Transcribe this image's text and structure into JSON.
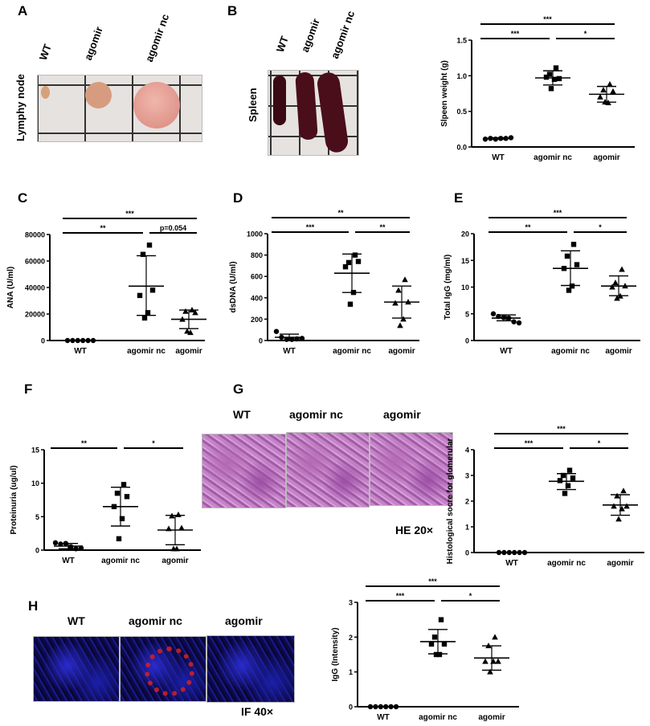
{
  "panels": {
    "A": {
      "letter": "A",
      "row_label": "Lymphy node",
      "col_labels": [
        "WT",
        "agomir",
        "agomir nc"
      ]
    },
    "B": {
      "letter": "B",
      "row_label": "Spleen",
      "col_labels": [
        "WT",
        "agomir",
        "agomir nc"
      ]
    },
    "C": {
      "letter": "C"
    },
    "D": {
      "letter": "D"
    },
    "E": {
      "letter": "E"
    },
    "F": {
      "letter": "F"
    },
    "G": {
      "letter": "G",
      "col_labels": [
        "WT",
        "agomir nc",
        "agomir"
      ],
      "magnification": "HE 20×"
    },
    "H": {
      "letter": "H",
      "col_labels": [
        "WT",
        "agomir nc",
        "agomir"
      ],
      "magnification": "IF 40×"
    }
  },
  "colors": {
    "marker": "#000000",
    "he_stain": "#b46ab4",
    "if_nuclei": "#2a2bd0",
    "if_igg": "#e02020"
  },
  "chart_data": [
    {
      "id": "spleen",
      "type": "scatter",
      "title": "",
      "xlabel": "",
      "ylabel": "Slpeen weight (g)",
      "categories": [
        "WT",
        "agomir nc",
        "agomir"
      ],
      "ylim": [
        0,
        1.5
      ],
      "yticks": [
        "0.0",
        "0.5",
        "1.0",
        "1.5"
      ],
      "markers": [
        "circle",
        "square",
        "triangle"
      ],
      "groups": [
        {
          "points": [
            0.11,
            0.12,
            0.11,
            0.12,
            0.12,
            0.13
          ],
          "mean": 0.12,
          "sd_low": 0.11,
          "sd_high": 0.13
        },
        {
          "points": [
            1.11,
            1.02,
            0.96,
            0.98,
            0.95,
            0.82
          ],
          "mean": 0.97,
          "sd_low": 0.87,
          "sd_high": 1.07
        },
        {
          "points": [
            0.88,
            0.8,
            0.78,
            0.7,
            0.62,
            0.63
          ],
          "mean": 0.74,
          "sd_low": 0.63,
          "sd_high": 0.85
        }
      ],
      "significance": [
        {
          "from": 0,
          "to": 2,
          "label": "***"
        },
        {
          "from": 0,
          "to": 1,
          "label": "***"
        },
        {
          "from": 1,
          "to": 2,
          "label": "*"
        }
      ]
    },
    {
      "id": "ana",
      "type": "scatter",
      "title": "",
      "xlabel": "",
      "ylabel": "ANA (U/ml)",
      "categories": [
        "WT",
        "agomir nc",
        "agomir"
      ],
      "ylim": [
        0,
        80000
      ],
      "yticks": [
        "0",
        "20000",
        "40000",
        "60000",
        "80000"
      ],
      "markers": [
        "circle",
        "square",
        "triangle"
      ],
      "groups": [
        {
          "points": [
            0,
            0,
            0,
            0,
            0,
            0
          ],
          "mean": 0,
          "sd_low": 0,
          "sd_high": 0
        },
        {
          "points": [
            72000,
            65000,
            38000,
            34000,
            21000,
            17000
          ],
          "mean": 41000,
          "sd_low": 19000,
          "sd_high": 64000
        },
        {
          "points": [
            23000,
            22000,
            21000,
            16000,
            6000,
            7000
          ],
          "mean": 16000,
          "sd_low": 9000,
          "sd_high": 23000
        }
      ],
      "significance": [
        {
          "from": 0,
          "to": 2,
          "label": "***"
        },
        {
          "from": 0,
          "to": 1,
          "label": "**"
        },
        {
          "from": 1,
          "to": 2,
          "label": "p=0.054"
        }
      ]
    },
    {
      "id": "dsdna",
      "type": "scatter",
      "title": "",
      "xlabel": "",
      "ylabel": "dsDNA (U/ml)",
      "categories": [
        "WT",
        "agomir nc",
        "agomir"
      ],
      "ylim": [
        0,
        1000
      ],
      "yticks": [
        "0",
        "200",
        "400",
        "600",
        "800",
        "1000"
      ],
      "markers": [
        "circle",
        "square",
        "triangle"
      ],
      "groups": [
        {
          "points": [
            85,
            30,
            10,
            10,
            15,
            20
          ],
          "mean": 30,
          "sd_low": 0,
          "sd_high": 60
        },
        {
          "points": [
            800,
            730,
            740,
            690,
            450,
            340
          ],
          "mean": 630,
          "sd_low": 450,
          "sd_high": 810
        },
        {
          "points": [
            570,
            470,
            360,
            350,
            200,
            140
          ],
          "mean": 360,
          "sd_low": 210,
          "sd_high": 510
        }
      ],
      "significance": [
        {
          "from": 0,
          "to": 2,
          "label": "**"
        },
        {
          "from": 0,
          "to": 1,
          "label": "***"
        },
        {
          "from": 1,
          "to": 2,
          "label": "**"
        }
      ]
    },
    {
      "id": "igg-total",
      "type": "scatter",
      "title": "",
      "xlabel": "",
      "ylabel": "Total IgG (mg/ml)",
      "categories": [
        "WT",
        "agomir nc",
        "agomir"
      ],
      "ylim": [
        0,
        20
      ],
      "yticks": [
        "0",
        "5",
        "10",
        "15",
        "20"
      ],
      "markers": [
        "circle",
        "square",
        "triangle"
      ],
      "groups": [
        {
          "points": [
            5.0,
            4.5,
            4.3,
            4.2,
            3.5,
            3.3
          ],
          "mean": 4.2,
          "sd_low": 3.7,
          "sd_high": 4.8
        },
        {
          "points": [
            18.0,
            15.8,
            14.2,
            13.5,
            10.2,
            9.4
          ],
          "mean": 13.5,
          "sd_low": 10.3,
          "sd_high": 16.8
        },
        {
          "points": [
            13.3,
            10.8,
            10.2,
            10.0,
            8.3,
            7.9
          ],
          "mean": 10.2,
          "sd_low": 8.4,
          "sd_high": 12.1
        }
      ],
      "significance": [
        {
          "from": 0,
          "to": 2,
          "label": "***"
        },
        {
          "from": 0,
          "to": 1,
          "label": "**"
        },
        {
          "from": 1,
          "to": 2,
          "label": "*"
        }
      ]
    },
    {
      "id": "proteinuria",
      "type": "scatter",
      "title": "",
      "xlabel": "",
      "ylabel": "Proteinuria  (ug/ul)",
      "categories": [
        "WT",
        "agomir nc",
        "agomir"
      ],
      "ylim": [
        0,
        15
      ],
      "yticks": [
        "0",
        "5",
        "10",
        "15"
      ],
      "markers": [
        "circle",
        "square",
        "triangle"
      ],
      "groups": [
        {
          "points": [
            1.1,
            0.9,
            1.0,
            0.5,
            0.2,
            0.3
          ],
          "mean": 0.6,
          "sd_low": 0.2,
          "sd_high": 1.0
        },
        {
          "points": [
            9.8,
            8.5,
            8.0,
            6.5,
            4.7,
            1.7
          ],
          "mean": 6.5,
          "sd_low": 3.6,
          "sd_high": 9.4
        },
        {
          "points": [
            5.3,
            5.1,
            3.3,
            3.2,
            0.2,
            0.2
          ],
          "mean": 3.0,
          "sd_low": 0.8,
          "sd_high": 5.2
        }
      ],
      "significance": [
        {
          "from": 0,
          "to": 1,
          "label": "**"
        },
        {
          "from": 1,
          "to": 2,
          "label": "*"
        }
      ]
    },
    {
      "id": "histo",
      "type": "scatter",
      "title": "",
      "xlabel": "",
      "ylabel": "Histological socre for glomerular",
      "categories": [
        "WT",
        "agomir nc",
        "agomir"
      ],
      "ylim": [
        0,
        4
      ],
      "yticks": [
        "0",
        "1",
        "2",
        "3",
        "4"
      ],
      "markers": [
        "circle",
        "square",
        "triangle"
      ],
      "groups": [
        {
          "points": [
            0,
            0,
            0,
            0,
            0,
            0
          ],
          "mean": 0,
          "sd_low": 0,
          "sd_high": 0
        },
        {
          "points": [
            3.2,
            3.0,
            2.9,
            2.8,
            2.6,
            2.3
          ],
          "mean": 2.77,
          "sd_low": 2.45,
          "sd_high": 3.07
        },
        {
          "points": [
            2.4,
            2.2,
            1.8,
            1.8,
            1.7,
            1.3
          ],
          "mean": 1.85,
          "sd_low": 1.45,
          "sd_high": 2.25
        }
      ],
      "significance": [
        {
          "from": 0,
          "to": 2,
          "label": "***"
        },
        {
          "from": 0,
          "to": 1,
          "label": "***"
        },
        {
          "from": 1,
          "to": 2,
          "label": "*"
        }
      ]
    },
    {
      "id": "igg-intensity",
      "type": "scatter",
      "title": "",
      "xlabel": "",
      "ylabel": "IgG (Intensity)",
      "categories": [
        "WT",
        "agomir nc",
        "agomir"
      ],
      "ylim": [
        0,
        3
      ],
      "yticks": [
        "0",
        "1",
        "2",
        "3"
      ],
      "markers": [
        "circle",
        "square",
        "triangle"
      ],
      "groups": [
        {
          "points": [
            0,
            0,
            0,
            0,
            0,
            0
          ],
          "mean": 0,
          "sd_low": 0,
          "sd_high": 0
        },
        {
          "points": [
            2.5,
            2.0,
            1.8,
            1.8,
            1.5,
            1.5
          ],
          "mean": 1.87,
          "sd_low": 1.52,
          "sd_high": 2.22
        },
        {
          "points": [
            2.0,
            1.75,
            1.3,
            1.3,
            1.3,
            1.0
          ],
          "mean": 1.4,
          "sd_low": 1.05,
          "sd_high": 1.75
        }
      ],
      "significance": [
        {
          "from": 0,
          "to": 2,
          "label": "***"
        },
        {
          "from": 0,
          "to": 1,
          "label": "***"
        },
        {
          "from": 1,
          "to": 2,
          "label": "*"
        }
      ]
    }
  ]
}
